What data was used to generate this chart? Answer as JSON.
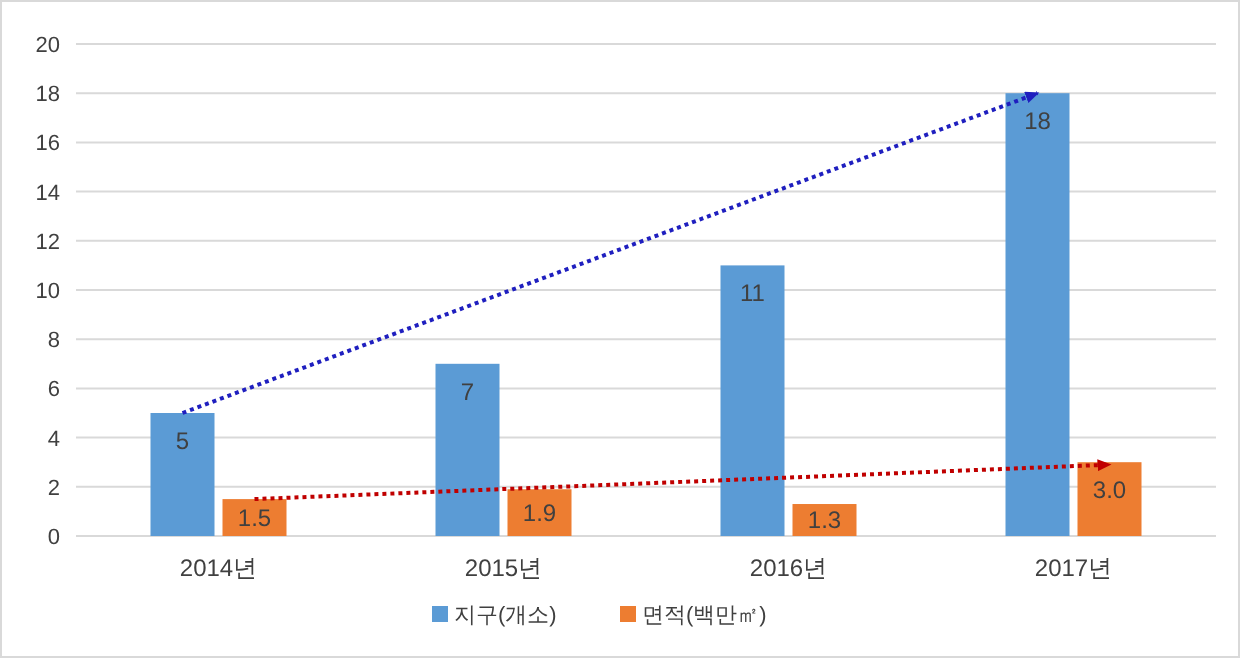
{
  "chart_data": {
    "type": "bar",
    "categories": [
      "2014년",
      "2015년",
      "2016년",
      "2017년"
    ],
    "series": [
      {
        "name": "지구(개소)",
        "color": "#5b9bd5",
        "values": [
          5,
          7,
          11,
          18
        ],
        "value_labels": [
          "5",
          "7",
          "11",
          "18"
        ]
      },
      {
        "name": "면적(백만㎡)",
        "color": "#ed7d31",
        "values": [
          1.5,
          1.9,
          1.3,
          3.0
        ],
        "value_labels": [
          "1.5",
          "1.9",
          "1.3",
          "3.0"
        ]
      },
      {
        "type": "line",
        "color": "#1f1fbf",
        "values": [
          5,
          null,
          null,
          18
        ],
        "line_style": "dotted",
        "marker": "none"
      },
      {
        "type": "line",
        "color": "#c00000",
        "values": [
          1.5,
          null,
          null,
          2.9
        ],
        "line_style": "dotted",
        "marker": "none"
      }
    ],
    "ylim": [
      0,
      20
    ],
    "yticks": [
      0,
      2,
      4,
      6,
      8,
      10,
      12,
      14,
      16,
      18,
      20
    ],
    "grid": "y",
    "legend": "bottom"
  }
}
